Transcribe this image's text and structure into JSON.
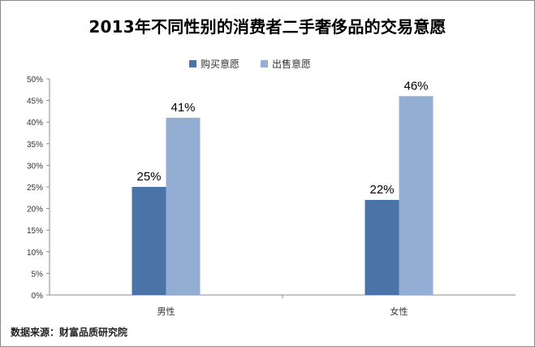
{
  "source_text": "数据来源：财富品质研究院",
  "colors": {
    "buy": "#4a74a8",
    "sell": "#94aed3",
    "axis": "#8c8c8c",
    "text": "#333333"
  },
  "chart_data": {
    "type": "bar",
    "title": "2013年不同性别的消费者二手奢侈品的交易意愿",
    "categories": [
      "男性",
      "女性"
    ],
    "series": [
      {
        "name": "购买意愿",
        "values": [
          25,
          22
        ],
        "labels": [
          "25%",
          "22%"
        ]
      },
      {
        "name": "出售意愿",
        "values": [
          41,
          46
        ],
        "labels": [
          "41%",
          "46%"
        ]
      }
    ],
    "ylim": [
      0,
      50
    ],
    "yticks": [
      "0%",
      "5%",
      "10%",
      "15%",
      "20%",
      "25%",
      "30%",
      "35%",
      "40%",
      "45%",
      "50%"
    ],
    "grid": false,
    "legend": "top"
  }
}
